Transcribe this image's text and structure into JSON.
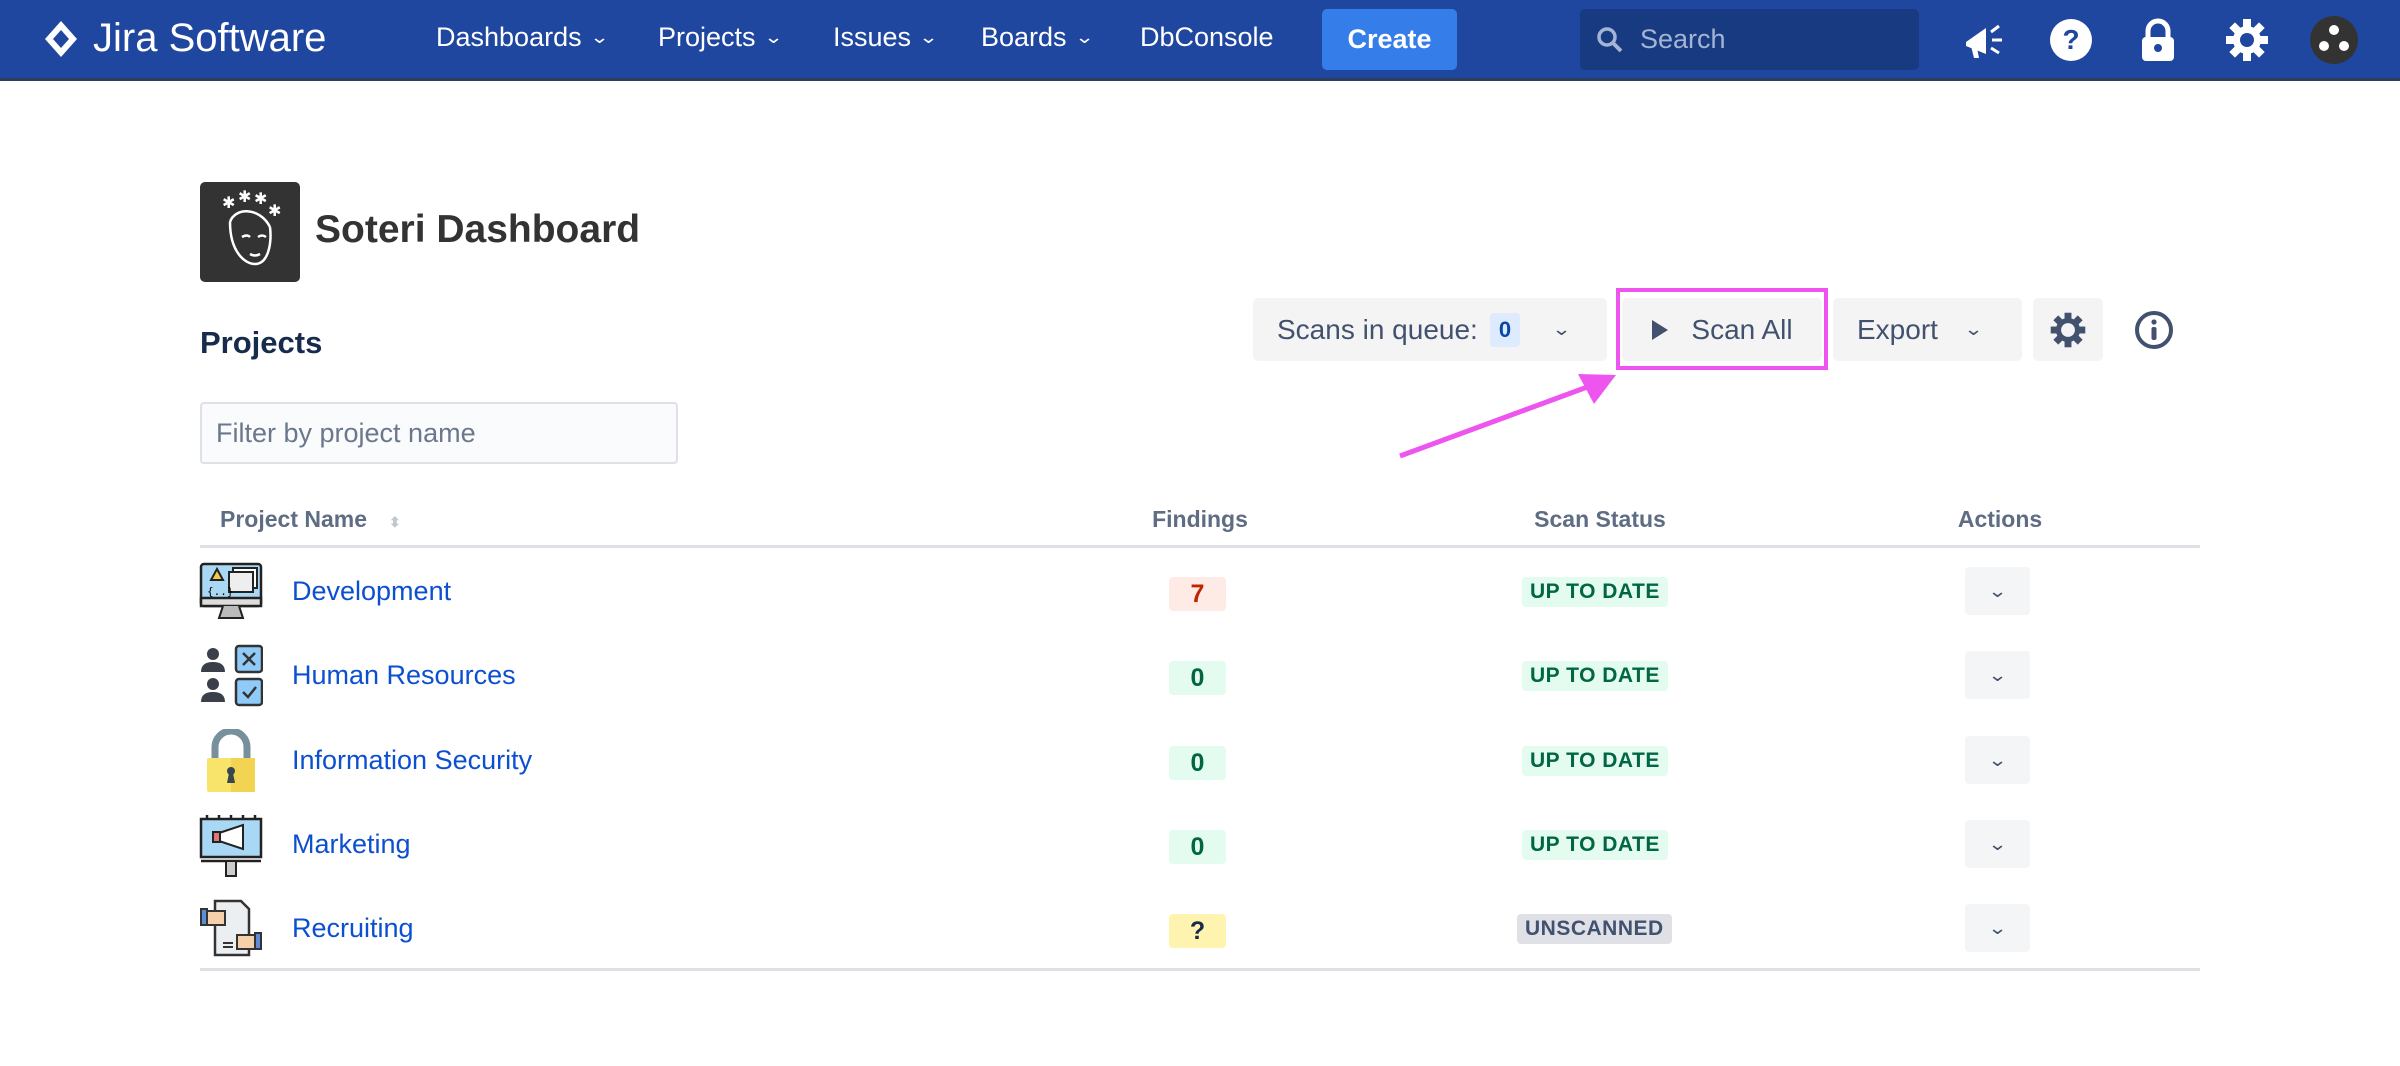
{
  "header": {
    "app_name": "Jira Software",
    "nav": [
      {
        "label": "Dashboards"
      },
      {
        "label": "Projects"
      },
      {
        "label": "Issues"
      },
      {
        "label": "Boards"
      },
      {
        "label": "DbConsole"
      }
    ],
    "create_label": "Create",
    "search_placeholder": "Search",
    "bg_color": "#1f47a0",
    "icons": [
      "megaphone-icon",
      "help-icon",
      "lock-icon",
      "gear-icon",
      "avatar"
    ]
  },
  "page": {
    "title": "Soteri Dashboard",
    "section_title": "Projects",
    "filter_placeholder": "Filter by project name"
  },
  "toolbar": {
    "scans_in_queue_label": "Scans in queue:",
    "scans_in_queue_count": "0",
    "scan_all_label": "Scan All",
    "export_label": "Export",
    "highlight_color": "#ee55ee"
  },
  "table": {
    "headers": {
      "name": "Project Name",
      "findings": "Findings",
      "status": "Scan Status",
      "actions": "Actions"
    },
    "rows": [
      {
        "name": "Development",
        "findings": "7",
        "status": "UP TO DATE",
        "icon": "developer-monitor-icon"
      },
      {
        "name": "Human Resources",
        "findings": "0",
        "status": "UP TO DATE",
        "icon": "people-checklist-icon"
      },
      {
        "name": "Information Security",
        "findings": "0",
        "status": "UP TO DATE",
        "icon": "padlock-icon"
      },
      {
        "name": "Marketing",
        "findings": "0",
        "status": "UP TO DATE",
        "icon": "billboard-megaphone-icon"
      },
      {
        "name": "Recruiting",
        "findings": "?",
        "status": "UNSCANNED",
        "icon": "handshake-document-icon"
      }
    ]
  }
}
